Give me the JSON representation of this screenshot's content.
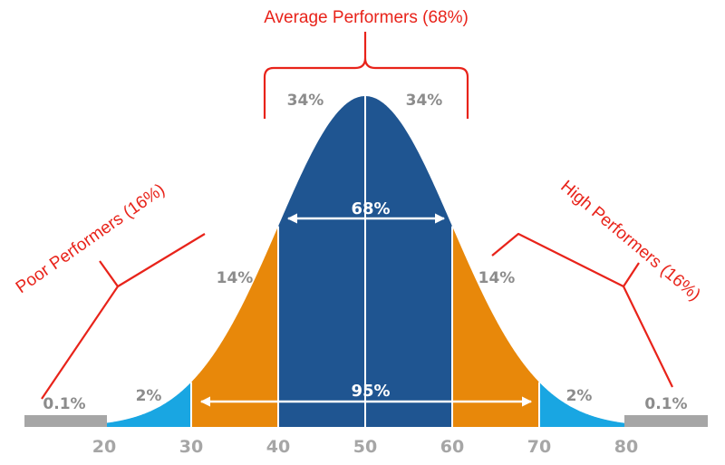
{
  "colors": {
    "center": "#1f5591",
    "orange": "#e8880a",
    "blue": "#19a6e2",
    "grey": "#a6a6a6",
    "red": "#e8231a"
  },
  "groups": {
    "average": "Average Performers (68%)",
    "poor": "Poor Performers (16%)",
    "high": "High Performers (16%)"
  },
  "bands": {
    "left_tail": "0.1%",
    "left_blue": "2%",
    "left_orange": "14%",
    "center_left": "34%",
    "center_right": "34%",
    "right_orange": "14%",
    "right_blue": "2%",
    "right_tail": "0.1%"
  },
  "spans": {
    "inner": "68%",
    "outer": "95%"
  },
  "axis": {
    "ticks": [
      "20",
      "30",
      "40",
      "50",
      "60",
      "70",
      "80"
    ]
  }
}
